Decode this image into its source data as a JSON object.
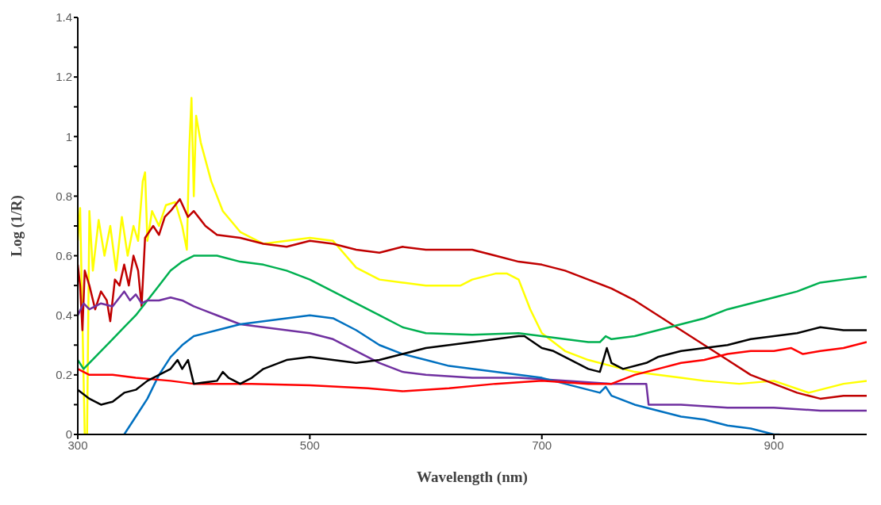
{
  "chart_data": {
    "type": "line",
    "xlabel": "Wavelength (nm)",
    "ylabel": "Log (1/R)",
    "xlim": [
      300,
      980
    ],
    "xticks": [
      300,
      500,
      700,
      900
    ],
    "ylim": [
      0,
      1.4
    ],
    "yticks": [
      0,
      {
        "value": 0.1,
        "label": null
      },
      0.2,
      {
        "value": 0.3,
        "label": null
      },
      0.4,
      {
        "value": 0.5,
        "label": null
      },
      0.6,
      {
        "value": 0.7,
        "label": null
      },
      0.8,
      {
        "value": 0.9,
        "label": null
      },
      1,
      {
        "value": 1.1,
        "label": null
      },
      1.2,
      {
        "value": 1.3,
        "label": null
      },
      1.4
    ],
    "grid": false,
    "legend": false,
    "marker": "none",
    "line_style": "solid",
    "series": [
      {
        "color": "#ffff00",
        "x": [
          300,
          302,
          306,
          308,
          310,
          313,
          318,
          323,
          328,
          333,
          338,
          343,
          348,
          352,
          356,
          358,
          360,
          364,
          370,
          376,
          384,
          390,
          394,
          396,
          398,
          400,
          402,
          406,
          415,
          425,
          440,
          460,
          480,
          500,
          520,
          540,
          560,
          580,
          600,
          630,
          640,
          660,
          670,
          680,
          690,
          700,
          720,
          740,
          760,
          780,
          800,
          820,
          840,
          870,
          900,
          930,
          960,
          980
        ],
        "values": [
          0.65,
          0.76,
          0,
          0,
          0.75,
          0.55,
          0.72,
          0.6,
          0.7,
          0.55,
          0.73,
          0.6,
          0.7,
          0.65,
          0.85,
          0.88,
          0.65,
          0.75,
          0.7,
          0.77,
          0.78,
          0.7,
          0.62,
          0.95,
          1.13,
          0.8,
          1.07,
          0.98,
          0.85,
          0.75,
          0.68,
          0.64,
          0.65,
          0.66,
          0.65,
          0.56,
          0.52,
          0.51,
          0.5,
          0.5,
          0.52,
          0.54,
          0.54,
          0.52,
          0.42,
          0.34,
          0.28,
          0.25,
          0.23,
          0.21,
          0.2,
          0.19,
          0.18,
          0.17,
          0.18,
          0.14,
          0.17,
          0.18
        ]
      },
      {
        "color": "#c00000",
        "x": [
          300,
          302,
          304,
          306,
          310,
          315,
          320,
          325,
          328,
          332,
          336,
          340,
          344,
          348,
          352,
          355,
          358,
          365,
          370,
          375,
          380,
          388,
          395,
          400,
          410,
          420,
          440,
          460,
          480,
          500,
          520,
          540,
          560,
          580,
          600,
          640,
          660,
          680,
          700,
          720,
          740,
          760,
          780,
          800,
          820,
          840,
          860,
          880,
          900,
          920,
          940,
          960,
          980
        ],
        "values": [
          0.57,
          0.5,
          0.35,
          0.55,
          0.5,
          0.42,
          0.48,
          0.45,
          0.38,
          0.52,
          0.5,
          0.57,
          0.5,
          0.6,
          0.55,
          0.43,
          0.66,
          0.7,
          0.67,
          0.73,
          0.75,
          0.79,
          0.73,
          0.75,
          0.7,
          0.67,
          0.66,
          0.64,
          0.63,
          0.65,
          0.64,
          0.62,
          0.61,
          0.63,
          0.62,
          0.62,
          0.6,
          0.58,
          0.57,
          0.55,
          0.52,
          0.49,
          0.45,
          0.4,
          0.35,
          0.3,
          0.25,
          0.2,
          0.17,
          0.14,
          0.12,
          0.13,
          0.13
        ]
      },
      {
        "color": "#00b050",
        "x": [
          300,
          305,
          310,
          320,
          330,
          340,
          350,
          360,
          370,
          380,
          390,
          400,
          420,
          440,
          460,
          480,
          500,
          520,
          540,
          560,
          580,
          600,
          640,
          680,
          720,
          740,
          750,
          755,
          760,
          780,
          800,
          820,
          840,
          860,
          880,
          900,
          920,
          940,
          960,
          980
        ],
        "values": [
          0.25,
          0.22,
          0.24,
          0.28,
          0.32,
          0.36,
          0.4,
          0.45,
          0.5,
          0.55,
          0.58,
          0.6,
          0.6,
          0.58,
          0.57,
          0.55,
          0.52,
          0.48,
          0.44,
          0.4,
          0.36,
          0.34,
          0.335,
          0.34,
          0.32,
          0.31,
          0.31,
          0.33,
          0.32,
          0.33,
          0.35,
          0.37,
          0.39,
          0.42,
          0.44,
          0.46,
          0.48,
          0.51,
          0.52,
          0.53
        ]
      },
      {
        "color": "#7030a0",
        "x": [
          300,
          305,
          310,
          320,
          330,
          340,
          345,
          350,
          355,
          360,
          370,
          380,
          390,
          400,
          420,
          440,
          460,
          480,
          500,
          520,
          540,
          560,
          580,
          600,
          640,
          680,
          720,
          760,
          790,
          792,
          820,
          860,
          900,
          940,
          980
        ],
        "values": [
          0.4,
          0.44,
          0.42,
          0.44,
          0.43,
          0.48,
          0.45,
          0.47,
          0.44,
          0.45,
          0.45,
          0.46,
          0.45,
          0.43,
          0.4,
          0.37,
          0.36,
          0.35,
          0.34,
          0.32,
          0.28,
          0.24,
          0.21,
          0.2,
          0.19,
          0.19,
          0.18,
          0.17,
          0.17,
          0.1,
          0.1,
          0.09,
          0.09,
          0.08,
          0.08
        ]
      },
      {
        "color": "#0070c0",
        "x": [
          340,
          350,
          360,
          370,
          380,
          390,
          400,
          420,
          440,
          460,
          480,
          500,
          520,
          540,
          560,
          580,
          600,
          620,
          640,
          660,
          680,
          700,
          720,
          740,
          750,
          755,
          760,
          780,
          800,
          820,
          840,
          860,
          880,
          900,
          905
        ],
        "values": [
          0,
          0.06,
          0.12,
          0.2,
          0.26,
          0.3,
          0.33,
          0.35,
          0.37,
          0.38,
          0.39,
          0.4,
          0.39,
          0.35,
          0.3,
          0.27,
          0.25,
          0.23,
          0.22,
          0.21,
          0.2,
          0.19,
          0.17,
          0.15,
          0.14,
          0.16,
          0.13,
          0.1,
          0.08,
          0.06,
          0.05,
          0.03,
          0.02,
          0,
          0
        ]
      },
      {
        "color": "#ff0000",
        "x": [
          300,
          310,
          330,
          350,
          380,
          400,
          450,
          500,
          550,
          580,
          620,
          660,
          700,
          740,
          760,
          780,
          800,
          820,
          840,
          860,
          880,
          900,
          915,
          925,
          940,
          960,
          980
        ],
        "values": [
          0.22,
          0.2,
          0.2,
          0.19,
          0.18,
          0.17,
          0.17,
          0.165,
          0.155,
          0.145,
          0.155,
          0.17,
          0.18,
          0.17,
          0.17,
          0.2,
          0.22,
          0.24,
          0.25,
          0.27,
          0.28,
          0.28,
          0.29,
          0.27,
          0.28,
          0.29,
          0.31
        ]
      },
      {
        "color": "#000000",
        "x": [
          300,
          310,
          320,
          330,
          340,
          350,
          360,
          370,
          380,
          386,
          390,
          395,
          400,
          420,
          425,
          430,
          440,
          450,
          460,
          480,
          500,
          520,
          540,
          560,
          580,
          600,
          620,
          640,
          660,
          680,
          685,
          700,
          710,
          720,
          740,
          750,
          756,
          760,
          770,
          790,
          800,
          820,
          840,
          860,
          880,
          900,
          920,
          940,
          960,
          980
        ],
        "values": [
          0.15,
          0.12,
          0.1,
          0.11,
          0.14,
          0.15,
          0.18,
          0.2,
          0.22,
          0.25,
          0.22,
          0.25,
          0.17,
          0.18,
          0.21,
          0.19,
          0.17,
          0.19,
          0.22,
          0.25,
          0.26,
          0.25,
          0.24,
          0.25,
          0.27,
          0.29,
          0.3,
          0.31,
          0.32,
          0.33,
          0.33,
          0.29,
          0.28,
          0.26,
          0.22,
          0.21,
          0.29,
          0.24,
          0.22,
          0.24,
          0.26,
          0.28,
          0.29,
          0.3,
          0.32,
          0.33,
          0.34,
          0.36,
          0.35,
          0.35
        ]
      }
    ]
  }
}
